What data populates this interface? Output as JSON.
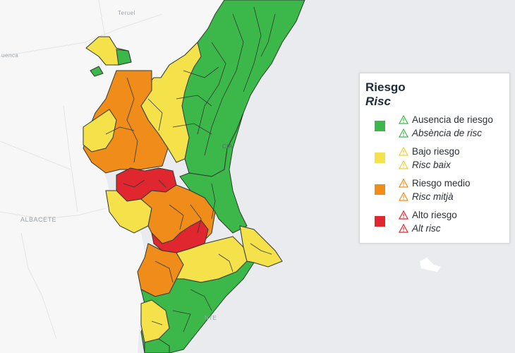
{
  "map": {
    "sea_color": "#e9ebee",
    "land_color": "#f7f7f7",
    "region_border_color": "#2f3a2f",
    "place_labels": [
      {
        "id": "teruel",
        "text": "Teruel"
      },
      {
        "id": "cuenca",
        "text": "uenca"
      },
      {
        "id": "albacete",
        "text": "ALBACETE"
      },
      {
        "id": "valencia",
        "text": "CIA"
      },
      {
        "id": "alicante",
        "text": "NTE"
      }
    ]
  },
  "legend": {
    "title": "Riesgo",
    "subtitle": "Risc",
    "items": [
      {
        "color": "#3cb84a",
        "label_es": "Ausencia de riesgo",
        "label_va": "Absència de risc"
      },
      {
        "color": "#f5e14a",
        "label_es": "Bajo riesgo",
        "label_va": "Risc baix"
      },
      {
        "color": "#f08c19",
        "label_es": "Riesgo medio",
        "label_va": "Risc mitjà"
      },
      {
        "color": "#e0262f",
        "label_es": "Alto riesgo",
        "label_va": "Alt risc"
      }
    ]
  }
}
